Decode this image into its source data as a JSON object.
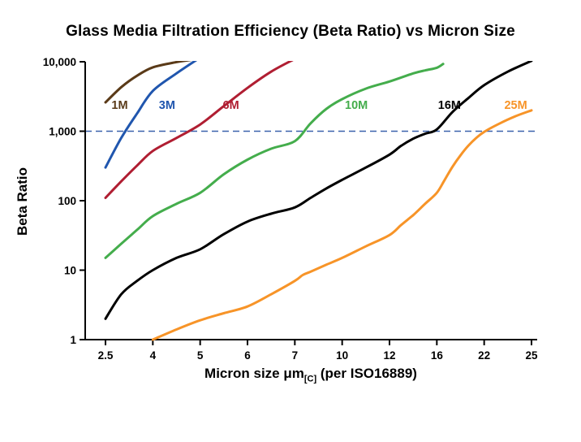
{
  "title": "Glass Media Filtration Efficiency (Beta Ratio) vs Micron Size",
  "chart_data": {
    "type": "line",
    "title": "Glass Media Filtration Efficiency (Beta Ratio) vs Micron Size",
    "x_axis": {
      "label_prefix": "Micron size μm",
      "label_subscript": "[C]",
      "label_suffix": " (per ISO16889)",
      "scale": "band-linear",
      "ticks": [
        2.5,
        4,
        5,
        6,
        7,
        10,
        12,
        16,
        22,
        25
      ],
      "tick_labels": [
        "2.5",
        "4",
        "5",
        "6",
        "7",
        "10",
        "12",
        "16",
        "22",
        "25"
      ]
    },
    "y_axis": {
      "label": "Beta Ratio",
      "scale": "log",
      "range": [
        1,
        10000
      ],
      "ticks": [
        1,
        10,
        100,
        1000,
        10000
      ],
      "tick_labels": [
        "1",
        "10",
        "100",
        "1,000",
        "10,000"
      ]
    },
    "reference_line": {
      "value": 1000,
      "color": "#3b62ac",
      "style": "dashed"
    },
    "series": [
      {
        "name": "1M",
        "color": "#5a3a18",
        "label_pos": {
          "x": 2.95,
          "y": 2400
        },
        "points": [
          [
            2.5,
            2600
          ],
          [
            3,
            4300
          ],
          [
            3.5,
            6300
          ],
          [
            4,
            8300
          ],
          [
            4.5,
            9900
          ],
          [
            4.8,
            10600
          ]
        ]
      },
      {
        "name": "3M",
        "color": "#2056ae",
        "label_pos": {
          "x": 4.3,
          "y": 2400
        },
        "points": [
          [
            2.5,
            300
          ],
          [
            3,
            800
          ],
          [
            3.5,
            1800
          ],
          [
            4,
            3800
          ],
          [
            4.5,
            6800
          ],
          [
            5,
            11500
          ]
        ]
      },
      {
        "name": "6M",
        "color": "#b01e32",
        "label_pos": {
          "x": 5.65,
          "y": 2400
        },
        "points": [
          [
            2.5,
            110
          ],
          [
            3,
            190
          ],
          [
            3.5,
            320
          ],
          [
            4,
            520
          ],
          [
            4.5,
            800
          ],
          [
            5,
            1250
          ],
          [
            5.5,
            2300
          ],
          [
            6,
            4200
          ],
          [
            6.5,
            7200
          ],
          [
            7,
            11000
          ]
        ]
      },
      {
        "name": "10M",
        "color": "#44ad4c",
        "label_pos": {
          "x": 10.6,
          "y": 2400
        },
        "points": [
          [
            2.5,
            15
          ],
          [
            3,
            24
          ],
          [
            3.5,
            38
          ],
          [
            4,
            60
          ],
          [
            4.5,
            90
          ],
          [
            5,
            130
          ],
          [
            5.5,
            240
          ],
          [
            6,
            390
          ],
          [
            6.5,
            560
          ],
          [
            7,
            720
          ],
          [
            8,
            1300
          ],
          [
            9,
            2100
          ],
          [
            10,
            2900
          ],
          [
            11,
            4100
          ],
          [
            12,
            5200
          ],
          [
            14,
            6800
          ],
          [
            15,
            7500
          ],
          [
            16,
            8200
          ],
          [
            16.8,
            9300
          ]
        ]
      },
      {
        "name": "16M",
        "color": "#000000",
        "label_pos": {
          "x": 17.6,
          "y": 2400
        },
        "points": [
          [
            2.5,
            2
          ],
          [
            3,
            4.5
          ],
          [
            3.5,
            7
          ],
          [
            4,
            10
          ],
          [
            4.5,
            15
          ],
          [
            5,
            20
          ],
          [
            5.5,
            33
          ],
          [
            6,
            50
          ],
          [
            6.5,
            65
          ],
          [
            7,
            80
          ],
          [
            8,
            110
          ],
          [
            9,
            150
          ],
          [
            10,
            200
          ],
          [
            11,
            300
          ],
          [
            12,
            460
          ],
          [
            13,
            620
          ],
          [
            14,
            780
          ],
          [
            15,
            920
          ],
          [
            16,
            1060
          ],
          [
            18,
            1900
          ],
          [
            20,
            3000
          ],
          [
            22,
            4600
          ],
          [
            23.5,
            7200
          ],
          [
            25,
            10300
          ]
        ]
      },
      {
        "name": "25M",
        "color": "#f79428",
        "label_pos": {
          "x": 24,
          "y": 2400
        },
        "points": [
          [
            4,
            1
          ],
          [
            4.5,
            1.4
          ],
          [
            5,
            1.9
          ],
          [
            5.5,
            2.4
          ],
          [
            6,
            3
          ],
          [
            6.5,
            4.5
          ],
          [
            7,
            7
          ],
          [
            7.5,
            8.5
          ],
          [
            8,
            9.5
          ],
          [
            9,
            12
          ],
          [
            10,
            15
          ],
          [
            11,
            22
          ],
          [
            12,
            32
          ],
          [
            13,
            45
          ],
          [
            14,
            62
          ],
          [
            15,
            90
          ],
          [
            16,
            130
          ],
          [
            17,
            200
          ],
          [
            18,
            310
          ],
          [
            19,
            450
          ],
          [
            20,
            620
          ],
          [
            21,
            800
          ],
          [
            22,
            980
          ],
          [
            23,
            1300
          ],
          [
            24,
            1650
          ],
          [
            25,
            2000
          ]
        ]
      }
    ]
  },
  "colors": {
    "background": "#ffffff",
    "axis": "#000000",
    "tick_text": "#000000"
  }
}
